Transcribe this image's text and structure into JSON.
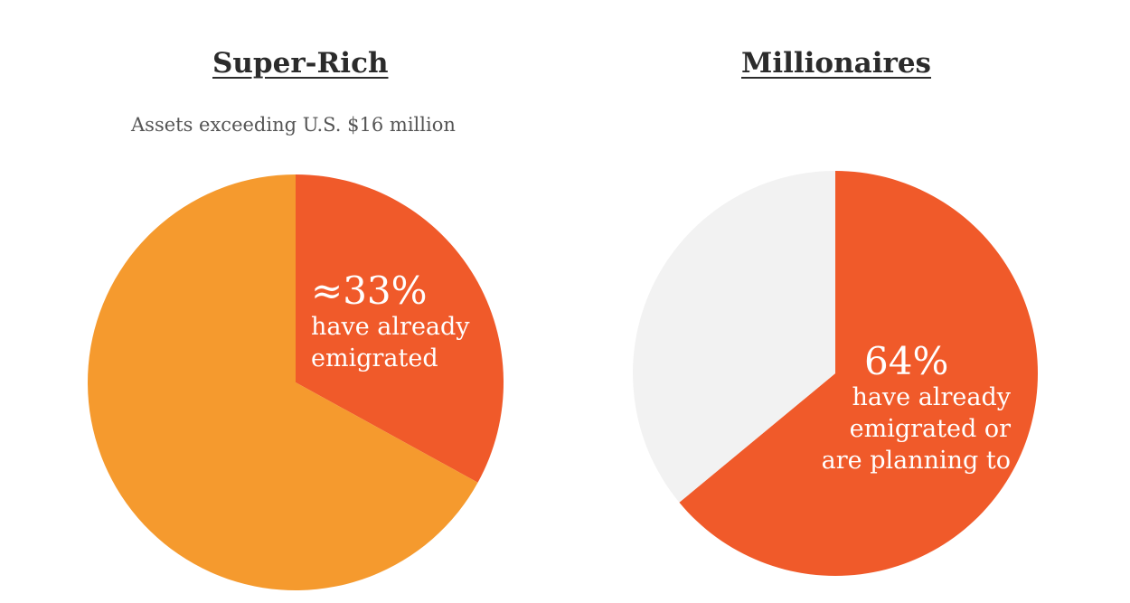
{
  "chart_data": [
    {
      "type": "pie",
      "title": "Super-Rich",
      "subtitle": "Assets exceeding U.S. $16 million",
      "slices": [
        {
          "value": 33,
          "color": "#f05a2a",
          "label": "≈33%"
        },
        {
          "value": 67,
          "color": "#f59a2e",
          "label": ""
        }
      ],
      "annotation": {
        "value_text": "≈33%",
        "lines": [
          "have already",
          "emigrated"
        ]
      }
    },
    {
      "type": "pie",
      "title": "Millionaires",
      "subtitle": "",
      "slices": [
        {
          "value": 64,
          "color": "#f05a2a",
          "label": "64%"
        },
        {
          "value": 36,
          "color": "#f2f2f2",
          "label": ""
        }
      ],
      "annotation": {
        "value_text": "64%",
        "lines": [
          "have already",
          "emigrated or",
          "are planning to"
        ]
      }
    }
  ]
}
